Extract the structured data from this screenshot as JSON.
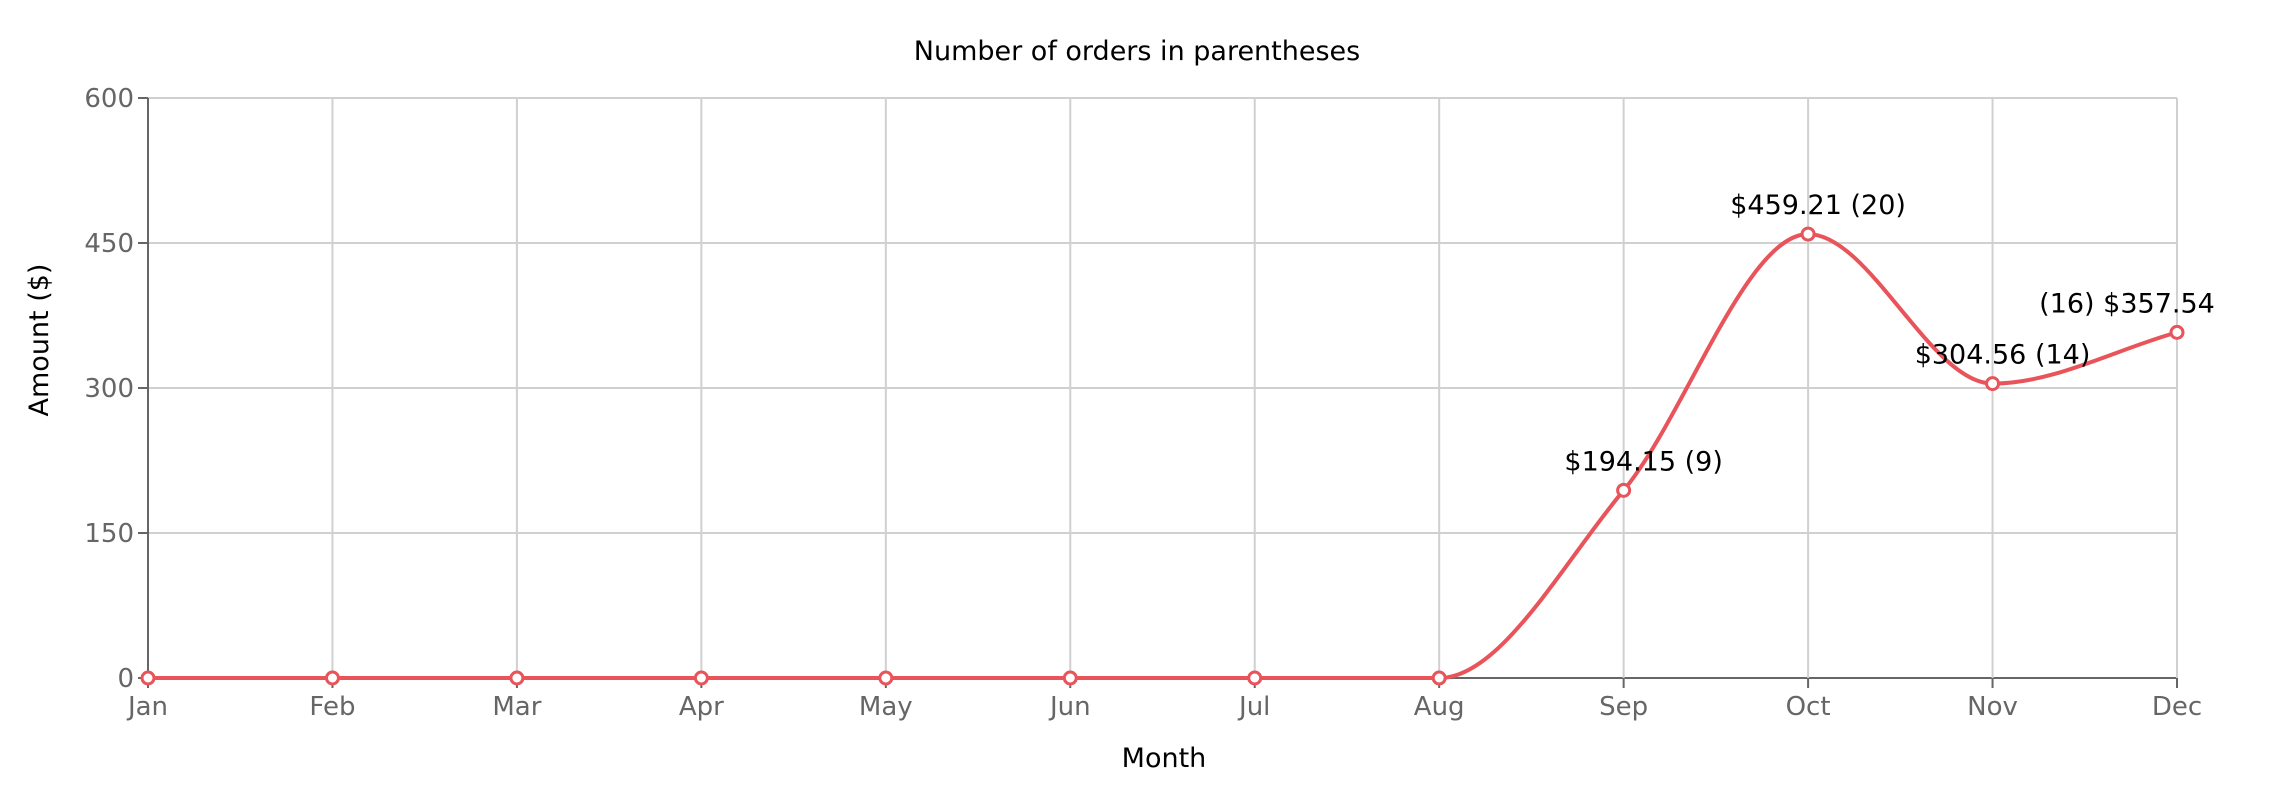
{
  "chart_data": {
    "type": "line",
    "title": "Number of orders in parentheses",
    "xlabel": "Month",
    "ylabel": "Amount ($)",
    "categories": [
      "Jan",
      "Feb",
      "Mar",
      "Apr",
      "May",
      "Jun",
      "Jul",
      "Aug",
      "Sep",
      "Oct",
      "Nov",
      "Dec"
    ],
    "series": [
      {
        "values": [
          0,
          0,
          0,
          0,
          0,
          0,
          0,
          0,
          194.15,
          459.21,
          304.56,
          357.54
        ],
        "color": "#e8545a"
      }
    ],
    "data_labels": [
      {
        "index": 8,
        "text": "$194.15 (9)"
      },
      {
        "index": 9,
        "text": "$459.21 (20)"
      },
      {
        "index": 10,
        "text": "$304.56 (14)"
      },
      {
        "index": 11,
        "text": "(16) $357.54"
      }
    ],
    "ylim": [
      0,
      600
    ],
    "yticks": [
      "0",
      "150",
      "300",
      "450",
      "600"
    ],
    "ytick_values": [
      0,
      150,
      300,
      450,
      600
    ],
    "grid": true,
    "legend": "none"
  }
}
